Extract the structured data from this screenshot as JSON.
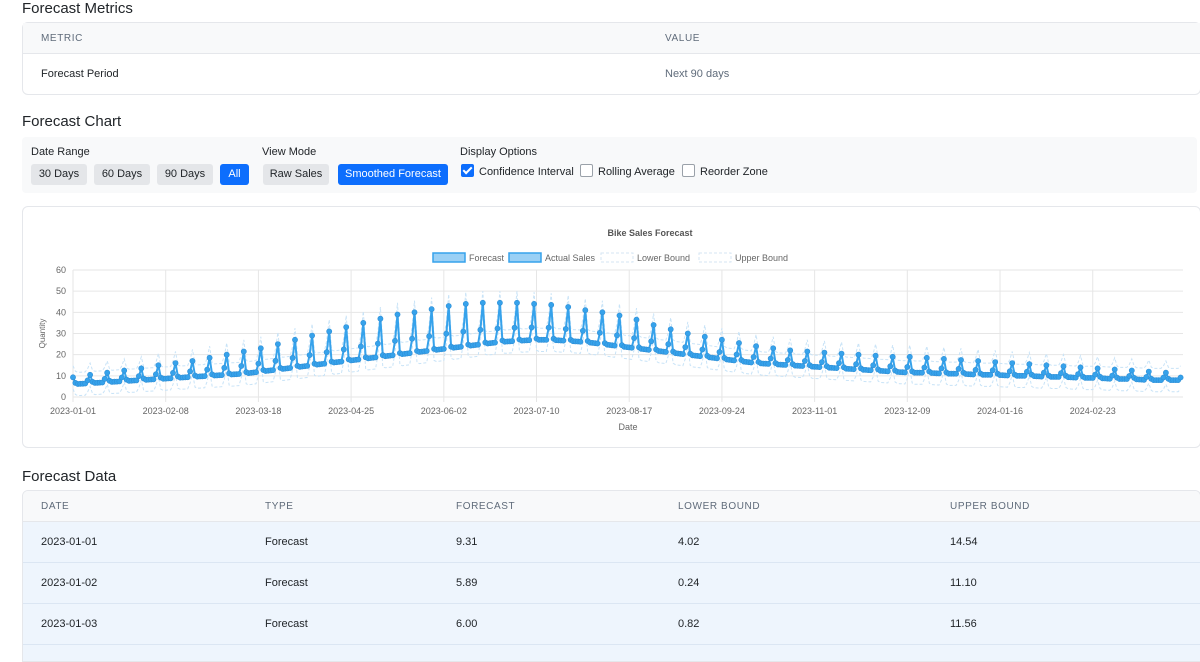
{
  "metrics": {
    "title": "Forecast Metrics",
    "headers": [
      "METRIC",
      "VALUE"
    ],
    "rows": [
      {
        "metric": "Forecast Period",
        "value": "Next 90 days"
      }
    ]
  },
  "chart_section": {
    "title": "Forecast Chart",
    "date_range": {
      "label": "Date Range",
      "buttons": [
        "30 Days",
        "60 Days",
        "90 Days",
        "All"
      ],
      "active": "All"
    },
    "view_mode": {
      "label": "View Mode",
      "buttons": [
        "Raw Sales",
        "Smoothed Forecast"
      ],
      "active": "Smoothed Forecast"
    },
    "display_options": {
      "label": "Display Options",
      "options": [
        {
          "label": "Confidence Interval",
          "checked": true
        },
        {
          "label": "Rolling Average",
          "checked": false
        },
        {
          "label": "Reorder Zone",
          "checked": false
        }
      ]
    }
  },
  "chart_data": {
    "type": "line",
    "title": "Bike Sales Forecast",
    "xlabel": "Date",
    "ylabel": "Quantity",
    "xlim": [
      "2023-01-01",
      "2024-03-31"
    ],
    "ylim": [
      0,
      60
    ],
    "yticks": [
      0,
      10,
      20,
      30,
      40,
      50,
      60
    ],
    "xticks": [
      "2023-01-01",
      "2023-02-08",
      "2023-03-18",
      "2023-04-25",
      "2023-06-02",
      "2023-07-10",
      "2023-08-17",
      "2023-09-24",
      "2023-11-01",
      "2023-12-09",
      "2024-01-16",
      "2024-02-23"
    ],
    "grid": true,
    "legend_position": "top",
    "legend": [
      "Forecast",
      "Actual Sales",
      "Lower Bound",
      "Upper Bound"
    ],
    "colors": {
      "forecast": "#36a2eb",
      "fill": "#9ad0f5",
      "bound": "#c8e3f7"
    },
    "pattern": "weekly",
    "weekly_peak_series": {
      "description_free": true,
      "dates": [
        "2023-01-01",
        "2023-01-08",
        "2023-01-15",
        "2023-01-22",
        "2023-01-29",
        "2023-02-05",
        "2023-02-12",
        "2023-02-19",
        "2023-02-26",
        "2023-03-05",
        "2023-03-12",
        "2023-03-19",
        "2023-03-26",
        "2023-04-02",
        "2023-04-09",
        "2023-04-16",
        "2023-04-23",
        "2023-04-30",
        "2023-05-07",
        "2023-05-14",
        "2023-05-21",
        "2023-05-28",
        "2023-06-04",
        "2023-06-11",
        "2023-06-18",
        "2023-06-25",
        "2023-07-02",
        "2023-07-09",
        "2023-07-16",
        "2023-07-23",
        "2023-07-30",
        "2023-08-06",
        "2023-08-13",
        "2023-08-20",
        "2023-08-27",
        "2023-09-03",
        "2023-09-10",
        "2023-09-17",
        "2023-09-24",
        "2023-10-01",
        "2023-10-08",
        "2023-10-15",
        "2023-10-22",
        "2023-10-29",
        "2023-11-05",
        "2023-11-12",
        "2023-11-19",
        "2023-11-26",
        "2023-12-03",
        "2023-12-10",
        "2023-12-17",
        "2023-12-24",
        "2023-12-31",
        "2024-01-07",
        "2024-01-14",
        "2024-01-21",
        "2024-01-28",
        "2024-02-04",
        "2024-02-11",
        "2024-02-18",
        "2024-02-25",
        "2024-03-03",
        "2024-03-10",
        "2024-03-17",
        "2024-03-24"
      ],
      "peak": [
        9.3,
        10.5,
        11.5,
        12.5,
        13.5,
        15,
        16,
        17,
        18.5,
        20,
        21.5,
        23,
        25,
        27,
        29,
        31,
        33,
        35,
        37,
        39,
        40,
        41.5,
        43,
        44,
        44.5,
        44.5,
        44.5,
        44,
        43.5,
        42.5,
        41,
        40,
        38.5,
        36.5,
        34,
        32,
        30,
        28.5,
        27,
        25.5,
        24,
        23,
        22,
        21.5,
        21,
        20.5,
        20,
        19.5,
        19,
        19,
        18.5,
        18,
        17.5,
        17,
        16.5,
        16,
        15.5,
        15,
        14.5,
        14,
        13.5,
        13,
        12.5,
        12,
        11.5
      ],
      "base": [
        6,
        6.5,
        7,
        7.5,
        8,
        8.5,
        9,
        9.5,
        10,
        10.5,
        11,
        12,
        13,
        14,
        15,
        16,
        17,
        18,
        19,
        20,
        21,
        22,
        23,
        24,
        25,
        26,
        26.5,
        27,
        27,
        26.5,
        26,
        25,
        24,
        23,
        22,
        21,
        20,
        19,
        18,
        17,
        16,
        15.5,
        15,
        14.5,
        14,
        13.5,
        13,
        12.5,
        12,
        11.5,
        11.5,
        11,
        11,
        10.5,
        10.5,
        10,
        10,
        9.5,
        9.5,
        9,
        9,
        8.5,
        8.5,
        8,
        8
      ]
    }
  },
  "forecast_data": {
    "title": "Forecast Data",
    "headers": [
      "DATE",
      "TYPE",
      "FORECAST",
      "LOWER BOUND",
      "UPPER BOUND"
    ],
    "rows": [
      {
        "date": "2023-01-01",
        "type": "Forecast",
        "forecast": "9.31",
        "lower": "4.02",
        "upper": "14.54"
      },
      {
        "date": "2023-01-02",
        "type": "Forecast",
        "forecast": "5.89",
        "lower": "0.24",
        "upper": "11.10"
      },
      {
        "date": "2023-01-03",
        "type": "Forecast",
        "forecast": "6.00",
        "lower": "0.82",
        "upper": "11.56"
      }
    ]
  }
}
